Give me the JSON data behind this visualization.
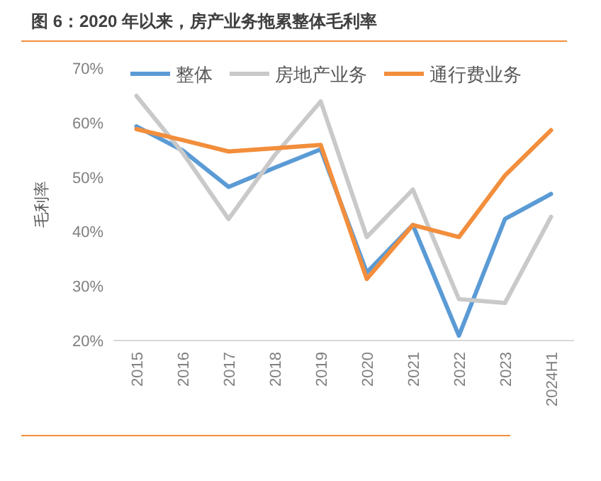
{
  "chart_data": {
    "type": "line",
    "title": "图 6：2020 年以来，房产业务拖累整体毛利率",
    "ylabel": "毛利率",
    "categories": [
      "2015",
      "2016",
      "2017",
      "2018",
      "2019",
      "2020",
      "2021",
      "2022",
      "2023",
      "2024H1"
    ],
    "ylim": [
      20,
      70
    ],
    "yticks": [
      {
        "value": 20,
        "label": "20%"
      },
      {
        "value": 30,
        "label": "30%"
      },
      {
        "value": 40,
        "label": "40%"
      },
      {
        "value": 50,
        "label": "50%"
      },
      {
        "value": 60,
        "label": "60%"
      },
      {
        "value": 70,
        "label": "70%"
      }
    ],
    "legend": "top",
    "grid": false,
    "marker": "none",
    "line_style": "solid",
    "series": [
      {
        "name": "整体",
        "color": "#5b9bd5",
        "values": [
          59.3,
          54.9,
          48.2,
          51.7,
          55.1,
          32.5,
          41.2,
          20.9,
          42.3,
          46.9
        ]
      },
      {
        "name": "房地产业务",
        "color": "#c9c9c9",
        "values": [
          64.9,
          54.5,
          42.3,
          54,
          63.9,
          39.0,
          47.7,
          27.6,
          26.9,
          42.7
        ]
      },
      {
        "name": "通行费业务",
        "color": "#f28e3c",
        "values": [
          58.8,
          56.8,
          54.7,
          55.3,
          55.9,
          31.3,
          41.2,
          39.0,
          50.3,
          58.6
        ]
      }
    ]
  }
}
